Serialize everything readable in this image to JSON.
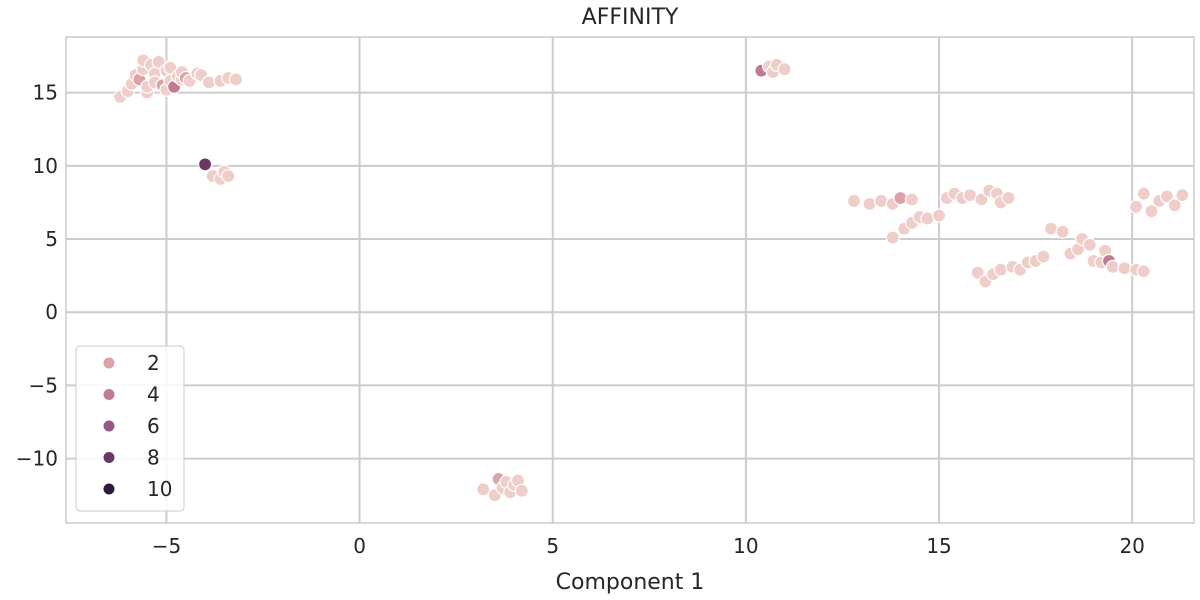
{
  "chart_data": {
    "type": "scatter",
    "title": "AFFINITY",
    "xlabel": "Component 1",
    "ylabel": "",
    "xlim": [
      -7.6,
      21.6
    ],
    "ylim": [
      -14.4,
      18.8
    ],
    "xticks": [
      -5,
      0,
      5,
      10,
      15,
      20
    ],
    "xtick_labels": [
      "−5",
      "0",
      "5",
      "10",
      "15",
      "20"
    ],
    "yticks": [
      -10,
      -5,
      0,
      5,
      10,
      15
    ],
    "ytick_labels": [
      "−10",
      "−5",
      "0",
      "5",
      "10",
      "15"
    ],
    "grid": true,
    "legend": {
      "placement": "lower-left",
      "entries": [
        {
          "label": "2",
          "color": "#dca2aa"
        },
        {
          "label": "4",
          "color": "#c07a94"
        },
        {
          "label": "6",
          "color": "#9a5886"
        },
        {
          "label": "8",
          "color": "#6a3766"
        },
        {
          "label": "10",
          "color": "#2f1a3c"
        }
      ]
    },
    "colors": {
      "base_point": "#efcdc8",
      "point_edge": "#ffffff",
      "grid": "#cccccc",
      "background": "#ffffff"
    },
    "points": [
      {
        "x": -6.2,
        "y": 14.7,
        "c": "#efcdc8"
      },
      {
        "x": -6.0,
        "y": 15.1,
        "c": "#efcdc8"
      },
      {
        "x": -5.9,
        "y": 15.6,
        "c": "#efcdc8"
      },
      {
        "x": -5.8,
        "y": 16.2,
        "c": "#efcdc8"
      },
      {
        "x": -5.7,
        "y": 15.9,
        "c": "#dca2aa"
      },
      {
        "x": -5.6,
        "y": 16.6,
        "c": "#efcdc8"
      },
      {
        "x": -5.6,
        "y": 17.2,
        "c": "#efcdc8"
      },
      {
        "x": -5.5,
        "y": 15.0,
        "c": "#efcdc8"
      },
      {
        "x": -5.5,
        "y": 15.4,
        "c": "#efcdc8"
      },
      {
        "x": -5.4,
        "y": 16.9,
        "c": "#efcdc8"
      },
      {
        "x": -5.3,
        "y": 16.3,
        "c": "#efcdc8"
      },
      {
        "x": -5.3,
        "y": 15.7,
        "c": "#efcdc8"
      },
      {
        "x": -5.2,
        "y": 17.1,
        "c": "#efcdc8"
      },
      {
        "x": -5.1,
        "y": 15.5,
        "c": "#dca2aa"
      },
      {
        "x": -5.0,
        "y": 16.5,
        "c": "#efcdc8"
      },
      {
        "x": -5.0,
        "y": 15.2,
        "c": "#efcdc8"
      },
      {
        "x": -4.9,
        "y": 15.8,
        "c": "#efcdc8"
      },
      {
        "x": -4.9,
        "y": 16.7,
        "c": "#efcdc8"
      },
      {
        "x": -4.8,
        "y": 15.4,
        "c": "#c07a94"
      },
      {
        "x": -4.7,
        "y": 16.1,
        "c": "#efcdc8"
      },
      {
        "x": -4.6,
        "y": 15.9,
        "c": "#efcdc8"
      },
      {
        "x": -4.6,
        "y": 16.4,
        "c": "#efcdc8"
      },
      {
        "x": -4.5,
        "y": 16.0,
        "c": "#dca2aa"
      },
      {
        "x": -4.4,
        "y": 15.8,
        "c": "#efcdc8"
      },
      {
        "x": -4.2,
        "y": 16.3,
        "c": "#efcdc8"
      },
      {
        "x": -4.1,
        "y": 16.2,
        "c": "#efcdc8"
      },
      {
        "x": -3.9,
        "y": 15.7,
        "c": "#efcdc8"
      },
      {
        "x": -3.6,
        "y": 15.8,
        "c": "#efcdc8"
      },
      {
        "x": -3.4,
        "y": 16.0,
        "c": "#efcdc8"
      },
      {
        "x": -3.2,
        "y": 15.9,
        "c": "#efcdc8"
      },
      {
        "x": -4.0,
        "y": 10.1,
        "c": "#6a3766"
      },
      {
        "x": -3.8,
        "y": 9.3,
        "c": "#efcdc8"
      },
      {
        "x": -3.6,
        "y": 9.1,
        "c": "#efcdc8"
      },
      {
        "x": -3.5,
        "y": 9.6,
        "c": "#efcdc8"
      },
      {
        "x": -3.4,
        "y": 9.3,
        "c": "#efcdc8"
      },
      {
        "x": 3.2,
        "y": -12.1,
        "c": "#efcdc8"
      },
      {
        "x": 3.5,
        "y": -12.5,
        "c": "#efcdc8"
      },
      {
        "x": 3.6,
        "y": -11.4,
        "c": "#dca2aa"
      },
      {
        "x": 3.7,
        "y": -12.0,
        "c": "#efcdc8"
      },
      {
        "x": 3.8,
        "y": -11.6,
        "c": "#efcdc8"
      },
      {
        "x": 3.9,
        "y": -12.3,
        "c": "#efcdc8"
      },
      {
        "x": 4.0,
        "y": -11.8,
        "c": "#efcdc8"
      },
      {
        "x": 4.1,
        "y": -11.5,
        "c": "#efcdc8"
      },
      {
        "x": 4.2,
        "y": -12.2,
        "c": "#efcdc8"
      },
      {
        "x": 10.4,
        "y": 16.5,
        "c": "#c07a94"
      },
      {
        "x": 10.6,
        "y": 16.8,
        "c": "#efcdc8"
      },
      {
        "x": 10.7,
        "y": 16.4,
        "c": "#efcdc8"
      },
      {
        "x": 10.8,
        "y": 16.9,
        "c": "#efcdc8"
      },
      {
        "x": 11.0,
        "y": 16.6,
        "c": "#efcdc8"
      },
      {
        "x": 12.8,
        "y": 7.6,
        "c": "#efcdc8"
      },
      {
        "x": 13.2,
        "y": 7.4,
        "c": "#efcdc8"
      },
      {
        "x": 13.5,
        "y": 7.6,
        "c": "#efcdc8"
      },
      {
        "x": 13.8,
        "y": 7.4,
        "c": "#efcdc8"
      },
      {
        "x": 14.0,
        "y": 7.8,
        "c": "#dca2aa"
      },
      {
        "x": 14.3,
        "y": 7.7,
        "c": "#efcdc8"
      },
      {
        "x": 13.8,
        "y": 5.1,
        "c": "#efcdc8"
      },
      {
        "x": 14.1,
        "y": 5.7,
        "c": "#efcdc8"
      },
      {
        "x": 14.3,
        "y": 6.1,
        "c": "#efcdc8"
      },
      {
        "x": 14.5,
        "y": 6.5,
        "c": "#efcdc8"
      },
      {
        "x": 14.7,
        "y": 6.4,
        "c": "#efcdc8"
      },
      {
        "x": 15.0,
        "y": 6.6,
        "c": "#efcdc8"
      },
      {
        "x": 15.2,
        "y": 7.8,
        "c": "#efcdc8"
      },
      {
        "x": 15.4,
        "y": 8.1,
        "c": "#efcdc8"
      },
      {
        "x": 15.6,
        "y": 7.8,
        "c": "#efcdc8"
      },
      {
        "x": 15.8,
        "y": 8.0,
        "c": "#efcdc8"
      },
      {
        "x": 16.1,
        "y": 7.7,
        "c": "#efcdc8"
      },
      {
        "x": 16.3,
        "y": 8.3,
        "c": "#efcdc8"
      },
      {
        "x": 16.5,
        "y": 8.1,
        "c": "#efcdc8"
      },
      {
        "x": 16.6,
        "y": 7.5,
        "c": "#efcdc8"
      },
      {
        "x": 16.8,
        "y": 7.8,
        "c": "#efcdc8"
      },
      {
        "x": 16.0,
        "y": 2.7,
        "c": "#efcdc8"
      },
      {
        "x": 16.2,
        "y": 2.1,
        "c": "#efcdc8"
      },
      {
        "x": 16.4,
        "y": 2.6,
        "c": "#efcdc8"
      },
      {
        "x": 16.6,
        "y": 2.9,
        "c": "#efcdc8"
      },
      {
        "x": 16.9,
        "y": 3.1,
        "c": "#efcdc8"
      },
      {
        "x": 17.1,
        "y": 2.9,
        "c": "#efcdc8"
      },
      {
        "x": 17.3,
        "y": 3.4,
        "c": "#efcdc8"
      },
      {
        "x": 17.5,
        "y": 3.5,
        "c": "#efcdc8"
      },
      {
        "x": 17.7,
        "y": 3.8,
        "c": "#efcdc8"
      },
      {
        "x": 17.9,
        "y": 5.7,
        "c": "#efcdc8"
      },
      {
        "x": 18.2,
        "y": 5.5,
        "c": "#efcdc8"
      },
      {
        "x": 18.4,
        "y": 4.0,
        "c": "#efcdc8"
      },
      {
        "x": 18.6,
        "y": 4.3,
        "c": "#efcdc8"
      },
      {
        "x": 18.7,
        "y": 5.0,
        "c": "#efcdc8"
      },
      {
        "x": 18.9,
        "y": 4.6,
        "c": "#efcdc8"
      },
      {
        "x": 19.0,
        "y": 3.5,
        "c": "#efcdc8"
      },
      {
        "x": 19.2,
        "y": 3.4,
        "c": "#efcdc8"
      },
      {
        "x": 19.3,
        "y": 4.2,
        "c": "#efcdc8"
      },
      {
        "x": 19.4,
        "y": 3.5,
        "c": "#c07a94"
      },
      {
        "x": 19.5,
        "y": 3.1,
        "c": "#efcdc8"
      },
      {
        "x": 19.8,
        "y": 3.0,
        "c": "#efcdc8"
      },
      {
        "x": 20.1,
        "y": 2.9,
        "c": "#efcdc8"
      },
      {
        "x": 20.3,
        "y": 2.8,
        "c": "#efcdc8"
      },
      {
        "x": 20.1,
        "y": 7.2,
        "c": "#efcdc8"
      },
      {
        "x": 20.3,
        "y": 8.1,
        "c": "#efcdc8"
      },
      {
        "x": 20.5,
        "y": 6.9,
        "c": "#efcdc8"
      },
      {
        "x": 20.7,
        "y": 7.6,
        "c": "#efcdc8"
      },
      {
        "x": 20.9,
        "y": 7.9,
        "c": "#efcdc8"
      },
      {
        "x": 21.1,
        "y": 7.3,
        "c": "#efcdc8"
      },
      {
        "x": 21.3,
        "y": 8.0,
        "c": "#efcdc8"
      }
    ]
  }
}
